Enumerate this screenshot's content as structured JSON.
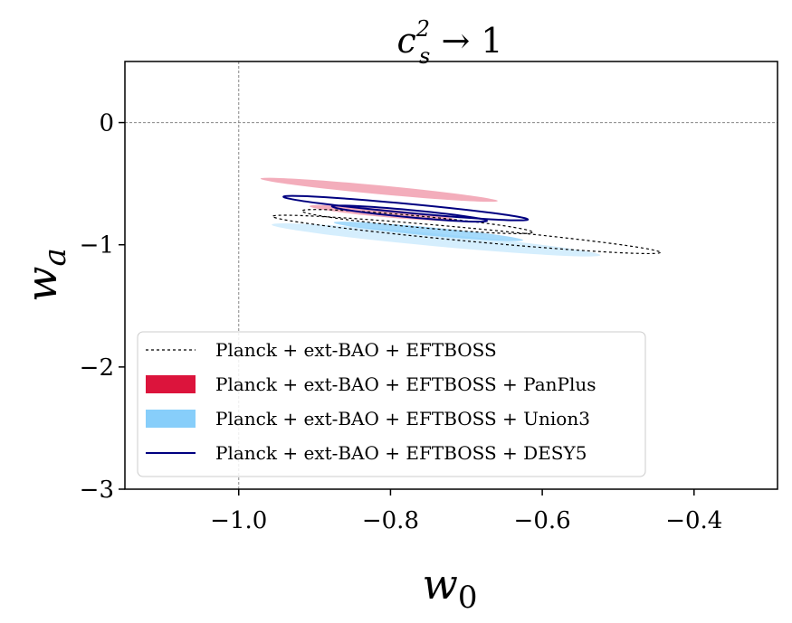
{
  "chart_data": {
    "type": "contour",
    "title": {
      "base": "c",
      "sup": "2",
      "sub": "s",
      "rest": " → 1"
    },
    "xlabel": {
      "base": "w",
      "sub": "0"
    },
    "ylabel": {
      "base": "w",
      "sub": "a"
    },
    "xlim": [
      -1.15,
      -0.29
    ],
    "ylim": [
      -3.0,
      0.5
    ],
    "xticks": [
      {
        "value": -1.0,
        "label": "−1.0"
      },
      {
        "value": -0.8,
        "label": "−0.8"
      },
      {
        "value": -0.6,
        "label": "−0.6"
      },
      {
        "value": -0.4,
        "label": "−0.4"
      }
    ],
    "yticks": [
      {
        "value": 0,
        "label": "0"
      },
      {
        "value": -1,
        "label": "−1"
      },
      {
        "value": -2,
        "label": "−2"
      },
      {
        "value": -3,
        "label": "−3"
      }
    ],
    "reference_lines": {
      "x": -1.0,
      "y": 0.0
    },
    "series": [
      {
        "name": "Planck + ext-BAO + EFTBOSS",
        "style": "dashed",
        "color": "#000000",
        "contours": [
          {
            "level": "68%",
            "center": [
              -0.765,
              -0.81
            ],
            "angle_deg": 29.8,
            "semi_major": 0.175,
            "semi_minor": 0.052
          },
          {
            "level": "95%",
            "center": [
              -0.7,
              -0.915
            ],
            "angle_deg": 30.0,
            "semi_major": 0.295,
            "semi_minor": 0.06
          }
        ]
      },
      {
        "name": "Planck + ext-BAO + EFTBOSS + PanPlus",
        "style": "filled",
        "color": "#dc143c",
        "contours": [
          {
            "level": "68%",
            "center": [
              -0.81,
              -0.74
            ],
            "angle_deg": 30.2,
            "semi_major": 0.112,
            "semi_minor": 0.036
          },
          {
            "level": "95%",
            "center": [
              -0.815,
              -0.55
            ],
            "angle_deg": 30.3,
            "semi_major": 0.181,
            "semi_minor": 0.04
          }
        ]
      },
      {
        "name": "Planck + ext-BAO + EFTBOSS + Union3",
        "style": "filled",
        "color": "#87cefa",
        "contours": [
          {
            "level": "68%",
            "center": [
              -0.75,
              -0.89
            ],
            "angle_deg": 30.0,
            "semi_major": 0.144,
            "semi_minor": 0.038
          },
          {
            "level": "95%",
            "center": [
              -0.74,
              -0.96
            ],
            "angle_deg": 30.0,
            "semi_major": 0.25,
            "semi_minor": 0.058
          }
        ]
      },
      {
        "name": "Planck + ext-BAO + EFTBOSS + DESY5",
        "style": "line",
        "color": "#000080",
        "contours": [
          {
            "level": "68%",
            "center": [
              -0.775,
              -0.745
            ],
            "angle_deg": 30.0,
            "semi_major": 0.118,
            "semi_minor": 0.033
          },
          {
            "level": "95%",
            "center": [
              -0.78,
              -0.7
            ],
            "angle_deg": 30.0,
            "semi_major": 0.186,
            "semi_minor": 0.041
          }
        ]
      }
    ],
    "legend_position": "lower-left"
  }
}
